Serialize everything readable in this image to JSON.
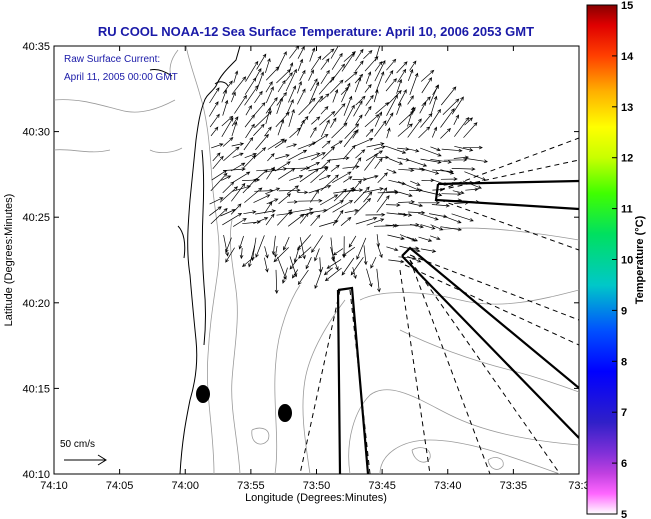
{
  "title": "RU COOL  NOAA-12  Sea Surface Temperature:  April 10, 2006 2053 GMT",
  "legend": {
    "line1": "Raw Surface Current:",
    "line2": "April 11, 2005 00:00 GMT"
  },
  "scale_label": "50 cm/s",
  "xlabel": "Longitude (Degrees:Minutes)",
  "ylabel": "Latitude (Degrees:Minutes)",
  "x_ticks": [
    "74:10",
    "74:05",
    "74:00",
    "73:55",
    "73:50",
    "73:45",
    "73:40",
    "73:35",
    "73:3"
  ],
  "y_ticks": [
    "40:35",
    "40:30",
    "40:25",
    "40:20",
    "40:15",
    "40:10"
  ],
  "colorbar": {
    "label": "Temperature (°C)",
    "ticks": [
      "15",
      "14",
      "13",
      "12",
      "11",
      "10",
      "9",
      "8",
      "7",
      "6",
      "5"
    ],
    "range": [
      5,
      15
    ]
  },
  "map": {
    "lon_range_deg": [
      -74.1667,
      -73.55
    ],
    "lat_range_deg": [
      40.1667,
      40.5833
    ],
    "current_field_center": {
      "lon": -73.82,
      "lat": 40.46
    },
    "markers": [
      {
        "name": "buoy-1",
        "lon": -73.9817,
        "lat": 40.2433
      },
      {
        "name": "buoy-2",
        "lon": -73.87,
        "lat": 40.225
      }
    ]
  }
}
